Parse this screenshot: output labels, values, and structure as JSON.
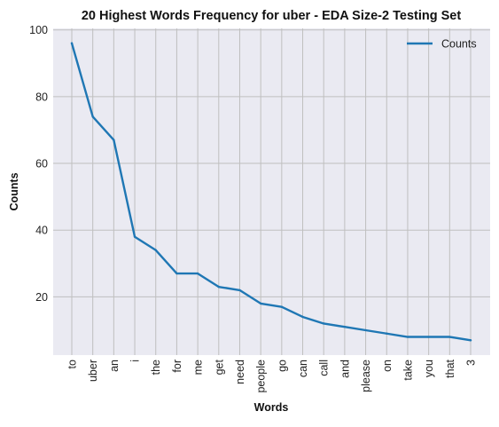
{
  "chart_data": {
    "type": "line",
    "title": "20 Highest Words Frequency for uber - EDA Size-2 Testing Set",
    "xlabel": "Words",
    "ylabel": "Counts",
    "categories": [
      "to",
      "uber",
      "an",
      "i",
      "the",
      "for",
      "me",
      "get",
      "need",
      "people",
      "go",
      "can",
      "call",
      "and",
      "please",
      "on",
      "take",
      "you",
      "that",
      "3"
    ],
    "series": [
      {
        "name": "Counts",
        "values": [
          96,
          74,
          67,
          38,
          34,
          27,
          27,
          23,
          22,
          18,
          17,
          14,
          12,
          11,
          10,
          9,
          8,
          8,
          8,
          7
        ],
        "color": "#1f77b4"
      }
    ],
    "yticks": [
      20,
      40,
      60,
      80,
      100
    ],
    "ylim": [
      2.55,
      100.45
    ],
    "grid": true,
    "legend": "top-right",
    "plot_background": "#eaeaf2",
    "grid_color": "#bfbfbf"
  }
}
